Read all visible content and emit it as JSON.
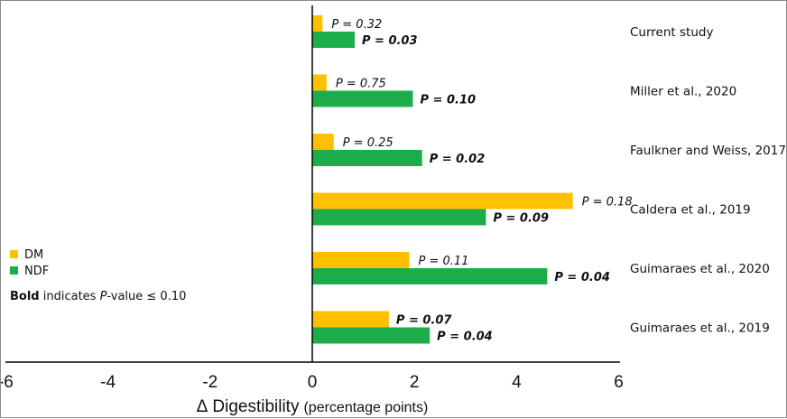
{
  "chart_data": {
    "type": "bar",
    "orientation": "horizontal",
    "xlabel_symbol": "Δ",
    "xlabel_main": "Digestibility",
    "xlabel_unit": "(percentage points)",
    "xlim": [
      -6,
      6
    ],
    "xticks": [
      "-6",
      "-4",
      "-2",
      "0",
      "2",
      "4",
      "6"
    ],
    "grid": false,
    "legend_placement": "left",
    "categories": [
      "Current study",
      "Miller et al., 2020",
      "Faulkner and Weiss, 2017",
      "Caldera et al., 2019",
      "Guimaraes et al., 2020",
      "Guimaraes et al., 2019"
    ],
    "series": [
      {
        "name": "DM",
        "color": "#FFC000",
        "values": [
          0.2,
          0.28,
          0.42,
          5.1,
          1.9,
          1.5
        ],
        "pvalues": [
          "P = 0.32",
          "P = 0.75",
          "P = 0.25",
          "P = 0.18",
          "P = 0.11",
          "P = 0.07"
        ],
        "bold": [
          false,
          false,
          false,
          false,
          false,
          true
        ]
      },
      {
        "name": "NDF",
        "color": "#1CAD4A",
        "values": [
          0.83,
          1.97,
          2.15,
          3.4,
          4.6,
          2.3
        ],
        "pvalues": [
          "P = 0.03",
          "P = 0.10",
          "P = 0.02",
          "P = 0.09",
          "P = 0.04",
          "P = 0.04"
        ],
        "bold": [
          true,
          true,
          true,
          true,
          true,
          true
        ]
      }
    ]
  },
  "note": {
    "bold_word": "Bold",
    "text_before": " indicates ",
    "italic_p": "P",
    "text_after": "-value ≤ 0.10"
  }
}
